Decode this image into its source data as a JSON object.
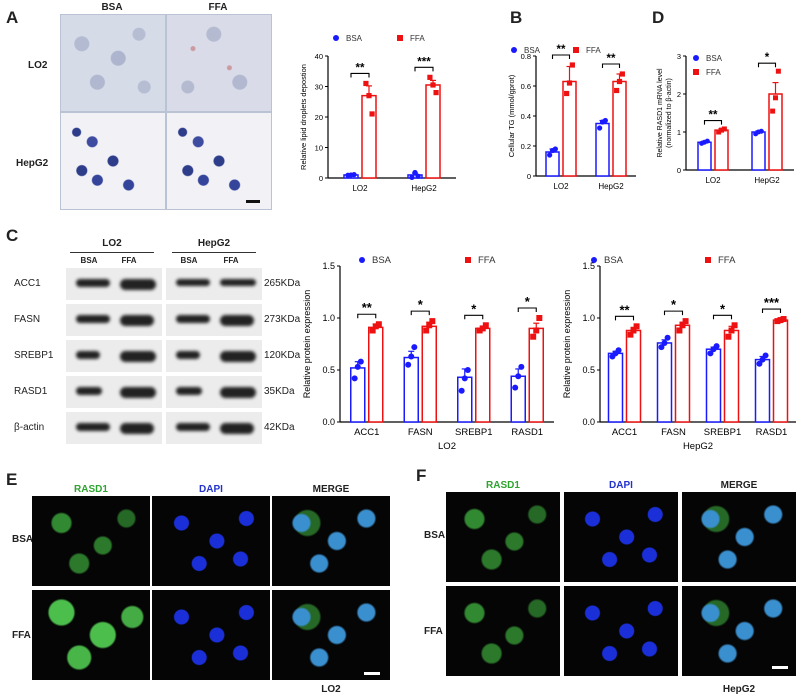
{
  "panels": {
    "A": {
      "label": "A",
      "headers": [
        "BSA",
        "FFA"
      ],
      "rows": [
        "LO2",
        "HepG2"
      ]
    },
    "B": {
      "label": "B"
    },
    "C": {
      "label": "C",
      "groups": [
        "LO2",
        "HepG2"
      ],
      "lanes": [
        "BSA",
        "FFA",
        "BSA",
        "FFA"
      ],
      "proteins": [
        "ACC1",
        "FASN",
        "SREBP1",
        "RASD1",
        "β-actin"
      ],
      "sizes": [
        "265KDa",
        "273KDa",
        "120KDa",
        "35KDa",
        "42KDa"
      ]
    },
    "D": {
      "label": "D"
    },
    "E": {
      "label": "E",
      "headers": [
        "RASD1",
        "DAPI",
        "MERGE"
      ],
      "rows": [
        "BSA",
        "FFA"
      ],
      "caption": "LO2"
    },
    "F": {
      "label": "F",
      "headers": [
        "RASD1",
        "DAPI",
        "MERGE"
      ],
      "rows": [
        "BSA",
        "FFA"
      ],
      "caption": "HepG2"
    }
  },
  "colors": {
    "bsa": "#1a1aff",
    "ffa": "#ee1111"
  },
  "chart_data": [
    {
      "id": "A",
      "type": "bar",
      "categories": [
        "LO2",
        "HepG2"
      ],
      "series": [
        {
          "name": "BSA",
          "values": [
            1,
            1
          ]
        },
        {
          "name": "FFA",
          "values": [
            27,
            30.5
          ]
        }
      ],
      "points": {
        "BSA": [
          [
            0.9,
            1,
            1.1
          ],
          [
            0.2,
            1.8,
            0.6
          ]
        ],
        "FFA": [
          [
            31,
            27,
            21
          ],
          [
            33,
            30.5,
            28
          ]
        ]
      },
      "errors": {
        "BSA": [
          0.1,
          0.6
        ],
        "FFA": [
          3.2,
          1.5
        ]
      },
      "ylabel": "Relative lipid droplets depostion",
      "ylim": [
        0,
        40
      ],
      "yticks": [
        0,
        10,
        20,
        30,
        40
      ],
      "significance": [
        "**",
        "***"
      ],
      "legend": [
        "BSA",
        "FFA"
      ]
    },
    {
      "id": "B",
      "type": "bar",
      "categories": [
        "LO2",
        "HepG2"
      ],
      "series": [
        {
          "name": "BSA",
          "values": [
            0.16,
            0.35
          ]
        },
        {
          "name": "FFA",
          "values": [
            0.63,
            0.63
          ]
        }
      ],
      "points": {
        "BSA": [
          [
            0.14,
            0.17,
            0.18
          ],
          [
            0.32,
            0.36,
            0.37
          ]
        ],
        "FFA": [
          [
            0.55,
            0.62,
            0.74
          ],
          [
            0.57,
            0.63,
            0.68
          ]
        ]
      },
      "errors": {
        "BSA": [
          0.02,
          0.02
        ],
        "FFA": [
          0.1,
          0.05
        ]
      },
      "ylabel": "Cellular TG (mmol/gprot)",
      "ylim": [
        0,
        0.8
      ],
      "yticks": [
        0,
        0.2,
        0.4,
        0.6,
        0.8
      ],
      "significance": [
        "**",
        "**"
      ],
      "legend": [
        "BSA",
        "FFA"
      ]
    },
    {
      "id": "D",
      "type": "bar",
      "categories": [
        "LO2",
        "HepG2"
      ],
      "series": [
        {
          "name": "BSA",
          "values": [
            0.73,
            1.0
          ]
        },
        {
          "name": "FFA",
          "values": [
            1.05,
            2.0
          ]
        }
      ],
      "points": {
        "BSA": [
          [
            0.7,
            0.73,
            0.76
          ],
          [
            0.95,
            1.0,
            1.02
          ]
        ],
        "FFA": [
          [
            1.0,
            1.05,
            1.08
          ],
          [
            1.55,
            1.9,
            2.6
          ]
        ]
      },
      "errors": {
        "BSA": [
          0.03,
          0.03
        ],
        "FFA": [
          0.04,
          0.3
        ]
      },
      "ylabel": "Relative RASD1 mRNA level (normalized to β-actin)",
      "ylim": [
        0,
        3
      ],
      "yticks": [
        0,
        1,
        2,
        3
      ],
      "significance": [
        "**",
        "*"
      ],
      "legend": [
        "BSA",
        "FFA"
      ]
    },
    {
      "id": "C1",
      "type": "bar",
      "categories": [
        "ACC1",
        "FASN",
        "SREBP1",
        "RASD1"
      ],
      "series": [
        {
          "name": "BSA",
          "values": [
            0.52,
            0.62,
            0.43,
            0.44
          ]
        },
        {
          "name": "FFA",
          "values": [
            0.91,
            0.92,
            0.9,
            0.9
          ]
        }
      ],
      "points": {
        "BSA": [
          [
            0.42,
            0.53,
            0.58
          ],
          [
            0.55,
            0.63,
            0.72
          ],
          [
            0.3,
            0.42,
            0.5
          ],
          [
            0.33,
            0.44,
            0.53
          ]
        ],
        "FFA": [
          [
            0.88,
            0.92,
            0.94
          ],
          [
            0.88,
            0.93,
            0.97
          ],
          [
            0.88,
            0.9,
            0.93
          ],
          [
            0.82,
            0.88,
            1.0
          ]
        ]
      },
      "errors": {
        "BSA": [
          0.06,
          0.06,
          0.08,
          0.07
        ],
        "FFA": [
          0.03,
          0.04,
          0.02,
          0.05
        ]
      },
      "xlabel": "LO2",
      "ylabel": "Relative protein expression",
      "ylim": [
        0,
        1.5
      ],
      "yticks": [
        0,
        0.5,
        1.0,
        1.5
      ],
      "significance": [
        "**",
        "*",
        "*",
        "*"
      ],
      "legend": [
        "BSA",
        "FFA"
      ]
    },
    {
      "id": "C2",
      "type": "bar",
      "categories": [
        "ACC1",
        "FASN",
        "SREBP1",
        "RASD1"
      ],
      "series": [
        {
          "name": "BSA",
          "values": [
            0.66,
            0.76,
            0.7,
            0.6
          ]
        },
        {
          "name": "FFA",
          "values": [
            0.88,
            0.93,
            0.88,
            0.98
          ]
        }
      ],
      "points": {
        "BSA": [
          [
            0.63,
            0.66,
            0.69
          ],
          [
            0.72,
            0.76,
            0.81
          ],
          [
            0.66,
            0.7,
            0.73
          ],
          [
            0.56,
            0.6,
            0.64
          ]
        ],
        "FFA": [
          [
            0.84,
            0.88,
            0.92
          ],
          [
            0.88,
            0.93,
            0.97
          ],
          [
            0.82,
            0.88,
            0.93
          ],
          [
            0.97,
            0.98,
            0.99
          ]
        ]
      },
      "errors": {
        "BSA": [
          0.02,
          0.03,
          0.02,
          0.03
        ],
        "FFA": [
          0.03,
          0.03,
          0.04,
          0.01
        ]
      },
      "xlabel": "HepG2",
      "ylabel": "Relative protein expression",
      "ylim": [
        0,
        1.5
      ],
      "yticks": [
        0,
        0.5,
        1.0,
        1.5
      ],
      "significance": [
        "**",
        "*",
        "*",
        "***"
      ],
      "legend": [
        "BSA",
        "FFA"
      ]
    }
  ]
}
